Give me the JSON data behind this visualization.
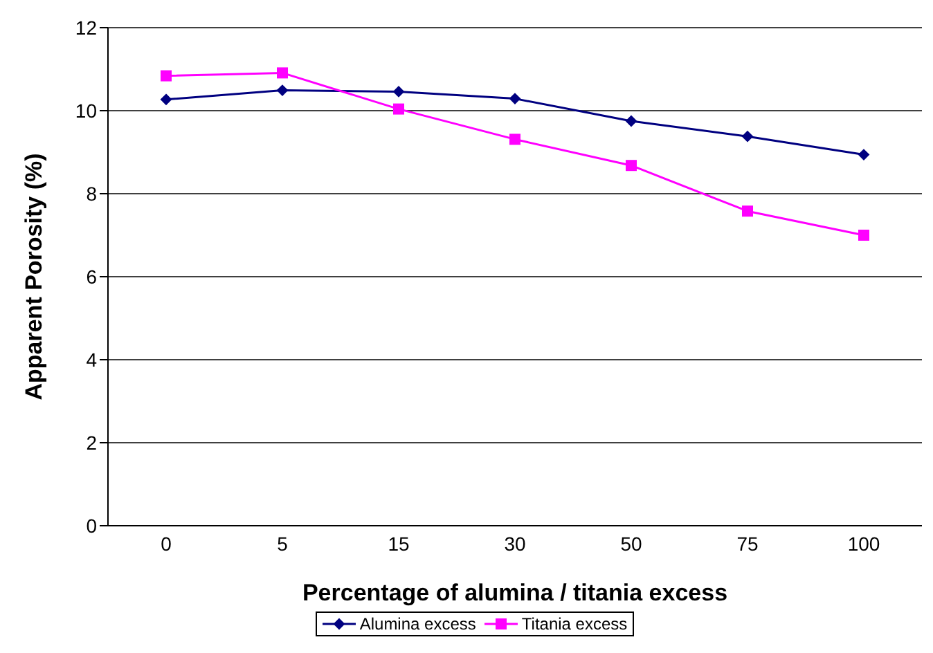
{
  "chart_data": {
    "type": "line",
    "xlabel": "Percentage of alumina / titania excess",
    "ylabel": "Apparent Porosity (%)",
    "categories": [
      "0",
      "5",
      "15",
      "30",
      "50",
      "75",
      "100"
    ],
    "series": [
      {
        "name": "Alumina excess",
        "color": "#000080",
        "marker": "diamond",
        "values": [
          10.27,
          10.49,
          10.46,
          10.29,
          9.75,
          9.38,
          8.94
        ]
      },
      {
        "name": "Titania excess",
        "color": "#ff00ff",
        "marker": "square",
        "values": [
          10.84,
          10.91,
          10.04,
          9.31,
          8.68,
          7.58,
          7.0
        ]
      }
    ],
    "ylim": [
      0,
      12
    ],
    "yticks": [
      0,
      2,
      4,
      6,
      8,
      10,
      12
    ],
    "grid": "y",
    "legend": "bottom",
    "line_style": "solid"
  }
}
